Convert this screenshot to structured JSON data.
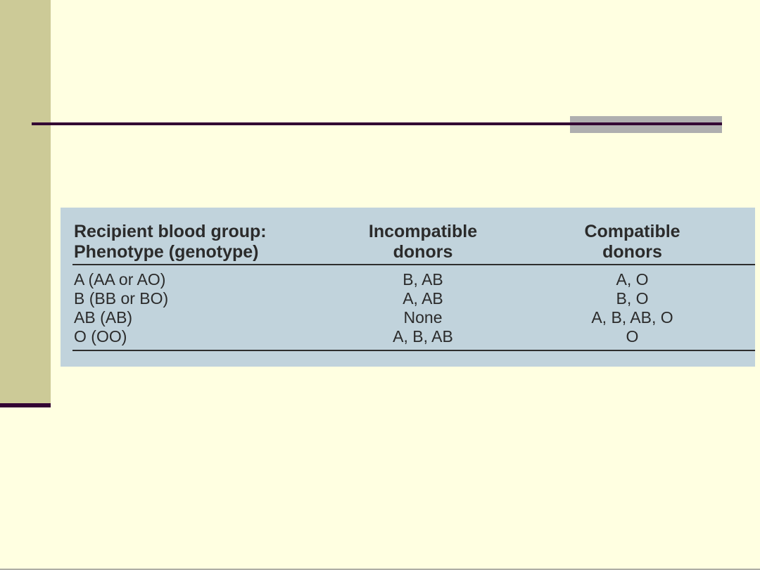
{
  "slide": {
    "background_color": "#FFFFE1",
    "accent_bar_color": "#CCCA97",
    "divider_color": "#330233",
    "gray_block_color": "#AFAFAF"
  },
  "table": {
    "background_color": "#C1D3DC",
    "text_color": "#2B2B2B",
    "rule_color": "#2E2E2E",
    "columns": [
      {
        "header_line1": "Recipient blood group:",
        "header_line2": "Phenotype (genotype)"
      },
      {
        "header_line1": "Incompatible",
        "header_line2": "donors"
      },
      {
        "header_line1": "Compatible",
        "header_line2": "donors"
      }
    ],
    "rows": [
      {
        "recipient": "A (AA or AO)",
        "incompatible": "B, AB",
        "compatible": "A, O"
      },
      {
        "recipient": "B (BB or BO)",
        "incompatible": "A, AB",
        "compatible": "B, O"
      },
      {
        "recipient": "AB (AB)",
        "incompatible": "None",
        "compatible": "A, B, AB, O"
      },
      {
        "recipient": "O (OO)",
        "incompatible": "A, B, AB",
        "compatible": "O"
      }
    ]
  }
}
